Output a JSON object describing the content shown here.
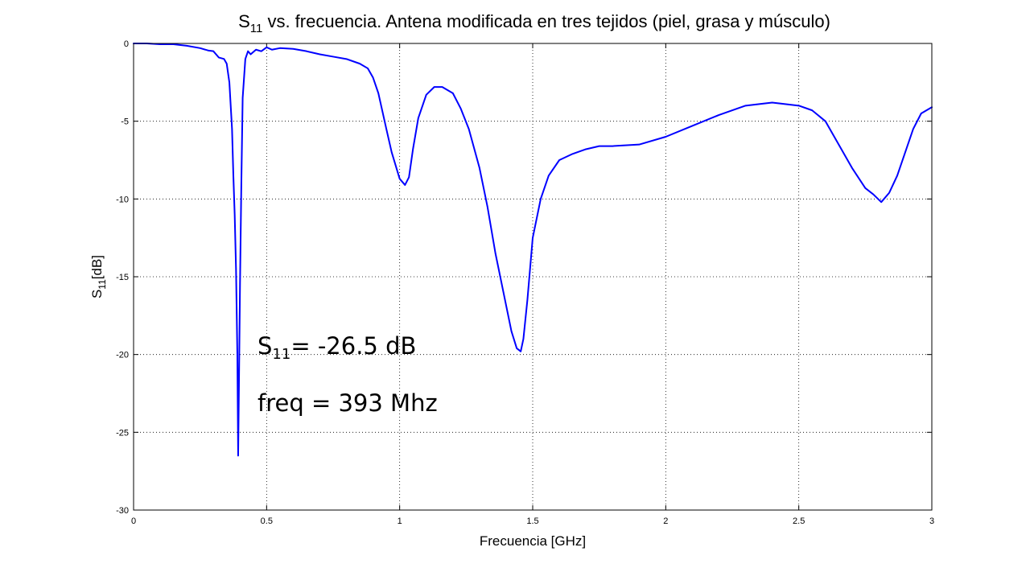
{
  "chart_data": {
    "type": "line",
    "title": "S11 vs. frecuencia. Antena modificada en tres tejidos (piel, grasa y músculo)",
    "title_parts": {
      "s": "S",
      "sub": "11",
      "rest": " vs. frecuencia. Antena modificada en tres tejidos (piel, grasa y músculo)"
    },
    "xlabel": "Frecuencia [GHz]",
    "ylabel": "S11[dB]",
    "ylabel_parts": {
      "s": "S",
      "sub": "11",
      "rest": "[dB]"
    },
    "xlim": [
      0,
      3
    ],
    "ylim": [
      -30,
      0
    ],
    "xticks": [
      0,
      0.5,
      1,
      1.5,
      2,
      2.5,
      3
    ],
    "xtick_labels": [
      "0",
      "0.5",
      "1",
      "1.5",
      "2",
      "2.5",
      "3"
    ],
    "yticks": [
      0,
      -5,
      -10,
      -15,
      -20,
      -25,
      -30
    ],
    "ytick_labels": [
      "0",
      "-5",
      "-10",
      "-15",
      "-20",
      "-25",
      "-30"
    ],
    "grid": true,
    "line_color": "#0000ff",
    "annotations": [
      {
        "s": "S",
        "sub": "11",
        "rest": "= -26.5 dB",
        "x": 0.46,
        "y": -19.6
      },
      {
        "text": "freq = 393 Mhz",
        "x": 0.46,
        "y": -23.3
      }
    ],
    "series": [
      {
        "x": [
          0,
          0.05,
          0.1,
          0.15,
          0.2,
          0.25,
          0.28,
          0.3,
          0.32,
          0.34,
          0.35,
          0.36,
          0.37,
          0.375,
          0.38,
          0.385,
          0.39,
          0.393,
          0.396,
          0.4,
          0.405,
          0.41,
          0.42,
          0.43,
          0.44,
          0.46,
          0.48,
          0.5,
          0.52,
          0.55,
          0.6,
          0.65,
          0.7,
          0.75,
          0.8,
          0.85,
          0.88,
          0.9,
          0.92,
          0.95,
          0.97,
          1.0,
          1.02,
          1.035,
          1.05,
          1.07,
          1.1,
          1.13,
          1.16,
          1.2,
          1.23,
          1.26,
          1.3,
          1.33,
          1.36,
          1.39,
          1.42,
          1.44,
          1.455,
          1.465,
          1.48,
          1.5,
          1.53,
          1.56,
          1.6,
          1.65,
          1.7,
          1.75,
          1.8,
          1.9,
          2.0,
          2.1,
          2.2,
          2.3,
          2.4,
          2.5,
          2.55,
          2.6,
          2.65,
          2.7,
          2.75,
          2.78,
          2.81,
          2.84,
          2.87,
          2.9,
          2.93,
          2.96,
          3.0
        ],
        "y": [
          0,
          0,
          -0.05,
          -0.05,
          -0.15,
          -0.3,
          -0.45,
          -0.5,
          -0.9,
          -1.0,
          -1.3,
          -2.5,
          -5.5,
          -8.5,
          -11,
          -14.5,
          -20,
          -26.5,
          -22,
          -15.5,
          -9,
          -3.5,
          -1.0,
          -0.5,
          -0.7,
          -0.4,
          -0.5,
          -0.25,
          -0.4,
          -0.3,
          -0.35,
          -0.5,
          -0.7,
          -0.85,
          -1.0,
          -1.3,
          -1.6,
          -2.2,
          -3.2,
          -5.5,
          -7.0,
          -8.7,
          -9.1,
          -8.6,
          -6.8,
          -4.8,
          -3.3,
          -2.8,
          -2.8,
          -3.2,
          -4.2,
          -5.5,
          -8.0,
          -10.5,
          -13.5,
          -16.0,
          -18.5,
          -19.6,
          -19.8,
          -19.0,
          -16.5,
          -12.5,
          -10.0,
          -8.5,
          -7.5,
          -7.1,
          -6.8,
          -6.6,
          -6.6,
          -6.5,
          -6.0,
          -5.3,
          -4.6,
          -4.0,
          -3.8,
          -4.0,
          -4.3,
          -5.0,
          -6.5,
          -8.0,
          -9.3,
          -9.7,
          -10.2,
          -9.6,
          -8.5,
          -7.0,
          -5.5,
          -4.5,
          -4.1
        ]
      }
    ]
  }
}
